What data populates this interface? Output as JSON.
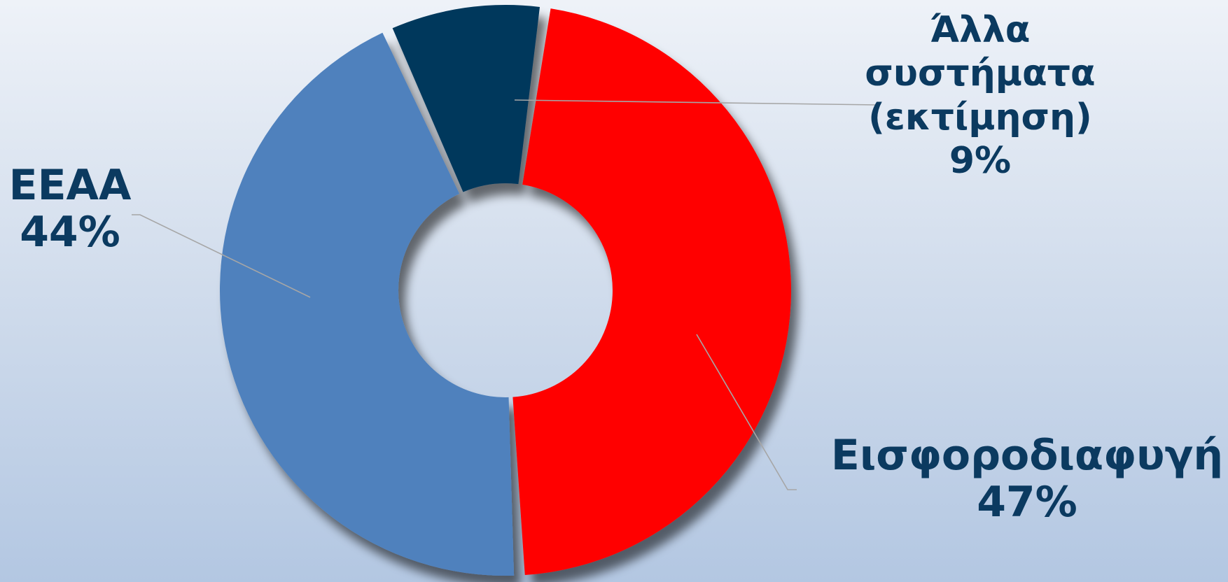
{
  "chart_data": {
    "type": "pie",
    "variant": "donut",
    "slices": [
      {
        "label": "Εισφοροδιαφυγή",
        "value": 47,
        "value_label": "47%",
        "color": "#ff0000"
      },
      {
        "label": "ΕΕΑΑ",
        "value": 44,
        "value_label": "44%",
        "color": "#4f81bd"
      },
      {
        "label": "Άλλα συστήματα (εκτίμηση)",
        "value": 9,
        "value_label": "9%",
        "color": "#06375b"
      }
    ],
    "label_color": "#0b3a60",
    "leader_line_color": "#a6a6a6",
    "legend": "none"
  },
  "labels": {
    "eeaa": {
      "name": "ΕΕΑΑ",
      "pct": "44%"
    },
    "other": {
      "line1": "Άλλα",
      "line2": "συστήματα",
      "line3": "(εκτίμηση)",
      "pct": "9%"
    },
    "evasion": {
      "name": "Εισφοροδιαφυγή",
      "pct": "47%"
    }
  }
}
